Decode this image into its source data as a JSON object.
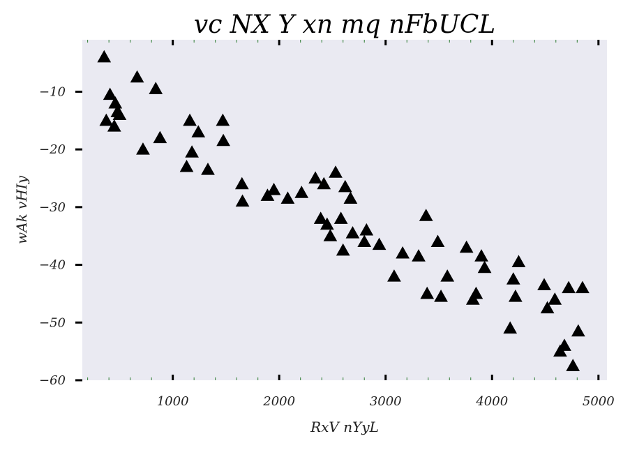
{
  "chart_data": {
    "type": "scatter",
    "title": "vc NX  Y xn  mq nFbUCL",
    "xlabel": "RxV nYyL",
    "ylabel": "wAk vHIy",
    "xlim": [
      150,
      5080
    ],
    "ylim": [
      -60,
      -1
    ],
    "xticks": [
      1000,
      2000,
      3000,
      4000,
      5000
    ],
    "yticks": [
      -60,
      -50,
      -40,
      -30,
      -20,
      -10
    ],
    "grid": false,
    "marker": "triangle",
    "colors": {
      "background": "#eaeaf2",
      "marker": "#000000",
      "minor_tick": "#2e7d32"
    },
    "series": [
      {
        "x": [
          355,
          375,
          410,
          460,
          480,
          500,
          450,
          665,
          720,
          840,
          880,
          1130,
          1160,
          1180,
          1240,
          1330,
          1470,
          1475,
          1650,
          1655,
          1890,
          1950,
          2080,
          2210,
          2340,
          2390,
          2420,
          2450,
          2480,
          2530,
          2580,
          2600,
          2620,
          2670,
          2690,
          2800,
          2820,
          2940,
          3080,
          3160,
          3310,
          3380,
          3390,
          3490,
          3520,
          3580,
          3760,
          3820,
          3850,
          3900,
          3930,
          4170,
          4200,
          4220,
          4250,
          4490,
          4520,
          4590,
          4640,
          4680,
          4720,
          4760,
          4810,
          4850
        ],
        "y": [
          -4,
          -15,
          -10.5,
          -12,
          -13.5,
          -14,
          -16,
          -7.5,
          -20,
          -9.5,
          -18,
          -23,
          -15,
          -20.5,
          -17,
          -23.5,
          -15,
          -18.5,
          -26,
          -29,
          -28,
          -27,
          -28.5,
          -27.5,
          -25,
          -32,
          -26,
          -33,
          -35,
          -24,
          -32,
          -37.5,
          -26.5,
          -28.5,
          -34.5,
          -36,
          -34,
          -36.5,
          -42,
          -38,
          -38.5,
          -31.5,
          -45,
          -36,
          -45.5,
          -42,
          -37,
          -46,
          -45,
          -38.5,
          -40.5,
          -51,
          -42.5,
          -45.5,
          -39.5,
          -43.5,
          -47.5,
          -46,
          -55,
          -54,
          -44,
          -57.5,
          -51.5,
          -44
        ]
      }
    ]
  }
}
